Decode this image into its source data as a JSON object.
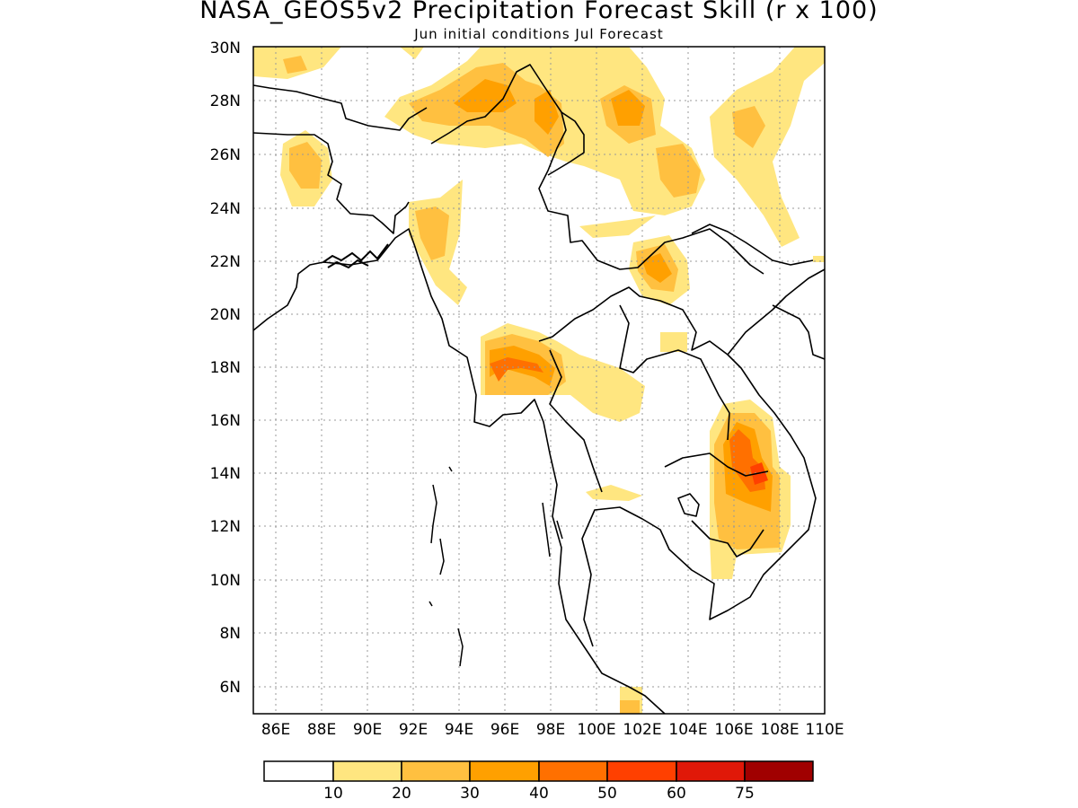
{
  "title": "NASA_GEOS5v2 Precipitation Forecast Skill (r x 100)",
  "subtitle": "Jun initial conditions  Jul Forecast",
  "map": {
    "lat_labels": [
      "30N",
      "28N",
      "26N",
      "24N",
      "22N",
      "20N",
      "18N",
      "16N",
      "14N",
      "12N",
      "10N",
      "8N",
      "6N"
    ],
    "lon_labels": [
      "86E",
      "88E",
      "90E",
      "92E",
      "94E",
      "96E",
      "98E",
      "100E",
      "102E",
      "104E",
      "106E",
      "108E",
      "110E"
    ],
    "lat_range": [
      5,
      30
    ],
    "lon_range": [
      85,
      110
    ],
    "grid": true
  },
  "colorbar": {
    "labels": [
      "10",
      "20",
      "30",
      "40",
      "50",
      "60",
      "75"
    ],
    "colors": [
      "#ffffff",
      "#ffe680",
      "#ffc040",
      "#ffa000",
      "#ff7000",
      "#ff4000",
      "#e01808",
      "#a00000"
    ]
  }
}
